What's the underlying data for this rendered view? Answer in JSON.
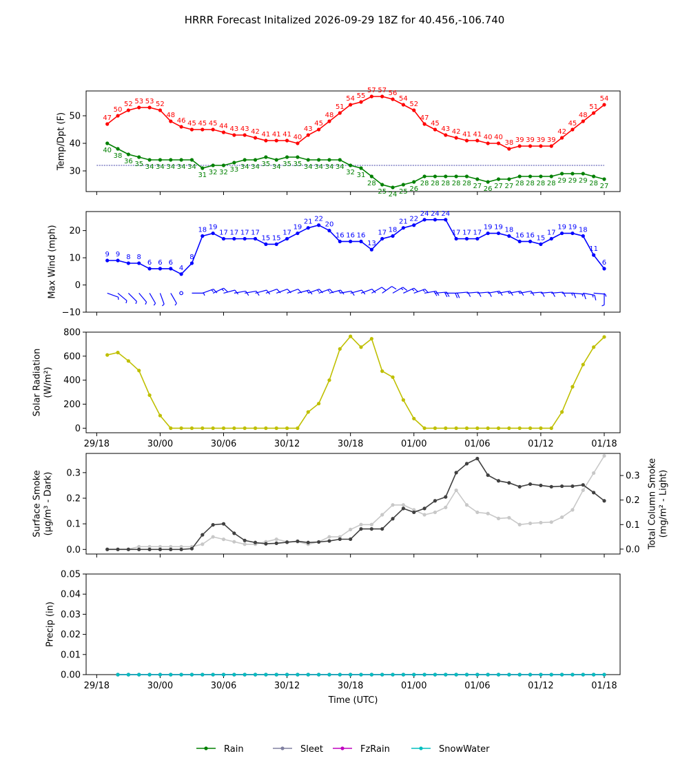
{
  "title": "HRRR Forecast Initalized 2026-09-29 18Z for 40.456,-106.740",
  "colors": {
    "temp": "#ff0000",
    "dew": "#008000",
    "wind": "#0000ff",
    "solar": "#bfbf00",
    "smoke_dark": "#404040",
    "smoke_light": "#c8c8c8",
    "rain": "#008000",
    "sleet": "#8080a0",
    "fzrain": "#bf00bf",
    "snow": "#00bfbf",
    "freezing_line": "#00008b"
  },
  "x_tick_labels": [
    "29/18",
    "30/00",
    "30/06",
    "30/12",
    "30/18",
    "01/00",
    "01/06",
    "01/12",
    "01/18"
  ],
  "xlabel": "Time (UTC)",
  "chart_data": [
    {
      "type": "line",
      "ylabel": "Temp/Dpt (F)",
      "ylim": [
        22.5,
        59
      ],
      "y_ticks": [
        "30",
        "40",
        "50"
      ],
      "x_hours": [
        1,
        2,
        3,
        4,
        5,
        6,
        7,
        8,
        9,
        10,
        11,
        12,
        13,
        14,
        15,
        16,
        17,
        18,
        19,
        20,
        21,
        22,
        23,
        24,
        25,
        26,
        27,
        28,
        29,
        30,
        31,
        32,
        33,
        34,
        35,
        36,
        37,
        38,
        39,
        40,
        41,
        42,
        43,
        44,
        45,
        46,
        47,
        48
      ],
      "freezing_line": 32,
      "series": [
        {
          "values": [
            47,
            50,
            52,
            53,
            53,
            52,
            48,
            46,
            45,
            45,
            45,
            44,
            43,
            43,
            42,
            41,
            41,
            41,
            40,
            43,
            45,
            48,
            51,
            54,
            55,
            57,
            57,
            56,
            54,
            52,
            47,
            45,
            43,
            42,
            41,
            41,
            40,
            40,
            38,
            39,
            39,
            39,
            39,
            42,
            45,
            48,
            51,
            54
          ],
          "labels": [
            "47",
            "50",
            "52",
            "53",
            "53",
            "52",
            "48",
            "46",
            "45",
            "45",
            "45",
            "44",
            "43",
            "43",
            "42",
            "41",
            "41",
            "41",
            "40",
            "43",
            "45",
            "48",
            "51",
            "54",
            "55",
            "57",
            "57",
            "56",
            "54",
            "52",
            "47",
            "45",
            "43",
            "42",
            "41",
            "41",
            "40",
            "40",
            "38",
            "39",
            "39",
            "39",
            "39",
            "42",
            "45",
            "48",
            "51",
            "54"
          ]
        },
        {
          "values": [
            40,
            38,
            36,
            35,
            34,
            34,
            34,
            34,
            34,
            31,
            32,
            32,
            33,
            34,
            34,
            35,
            34,
            35,
            35,
            34,
            34,
            34,
            34,
            32,
            31,
            28,
            25,
            24,
            25,
            26,
            28,
            28,
            28,
            28,
            28,
            27,
            26,
            27,
            27,
            28,
            28,
            28,
            28,
            29,
            29,
            29,
            28,
            27
          ],
          "labels": [
            "40",
            "38",
            "36",
            "35",
            "34",
            "34",
            "34",
            "34",
            "34",
            "31",
            "32",
            "32",
            "33",
            "34",
            "34",
            "35",
            "34",
            "35",
            "35",
            "34",
            "34",
            "34",
            "34",
            "32",
            "31",
            "28",
            "25",
            "24",
            "25",
            "26",
            "28",
            "28",
            "28",
            "28",
            "28",
            "27",
            "26",
            "27",
            "27",
            "28",
            "28",
            "28",
            "28",
            "29",
            "29",
            "29",
            "28",
            "27"
          ]
        }
      ]
    },
    {
      "type": "line",
      "ylabel": "Max Wind (mph)",
      "ylim": [
        -10,
        27
      ],
      "y_ticks": [
        "−10",
        "0",
        "10",
        "20"
      ],
      "x_hours": [
        1,
        2,
        3,
        4,
        5,
        6,
        7,
        8,
        9,
        10,
        11,
        12,
        13,
        14,
        15,
        16,
        17,
        18,
        19,
        20,
        21,
        22,
        23,
        24,
        25,
        26,
        27,
        28,
        29,
        30,
        31,
        32,
        33,
        34,
        35,
        36,
        37,
        38,
        39,
        40,
        41,
        42,
        43,
        44,
        45,
        46,
        47,
        48
      ],
      "values": [
        9,
        9,
        8,
        8,
        6,
        6,
        6,
        4,
        8,
        18,
        19,
        17,
        17,
        17,
        17,
        15,
        15,
        17,
        19,
        21,
        22,
        20,
        16,
        16,
        16,
        13,
        17,
        18,
        21,
        22,
        24,
        24,
        24,
        17,
        17,
        17,
        19,
        19,
        18,
        16,
        16,
        15,
        17,
        19,
        19,
        18,
        11,
        6
      ],
      "labels": [
        "9",
        "9",
        "8",
        "8",
        "6",
        "6",
        "6",
        "4",
        "8",
        "18",
        "19",
        "17",
        "17",
        "17",
        "17",
        "15",
        "15",
        "17",
        "19",
        "21",
        "22",
        "20",
        "16",
        "16",
        "16",
        "13",
        "17",
        "18",
        "21",
        "22",
        "24",
        "24",
        "24",
        "17",
        "17",
        "17",
        "19",
        "19",
        "18",
        "16",
        "16",
        "15",
        "17",
        "19",
        "19",
        "18",
        "11",
        "6"
      ],
      "wind_barbs_y": -3,
      "wind_dir_deg": [
        290,
        310,
        315,
        320,
        330,
        340,
        330,
        0,
        270,
        250,
        245,
        255,
        260,
        260,
        255,
        250,
        250,
        250,
        255,
        250,
        250,
        255,
        260,
        255,
        250,
        240,
        235,
        240,
        245,
        250,
        260,
        265,
        270,
        265,
        265,
        265,
        260,
        260,
        260,
        260,
        265,
        265,
        265,
        270,
        275,
        280,
        275,
        0
      ]
    },
    {
      "type": "line",
      "ylabel": "Solar Radiation (W/m²)",
      "ylim": [
        -38,
        800
      ],
      "y_ticks": [
        "0",
        "200",
        "400",
        "600",
        "800"
      ],
      "x_hours": [
        1,
        2,
        3,
        4,
        5,
        6,
        7,
        8,
        9,
        10,
        11,
        12,
        13,
        14,
        15,
        16,
        17,
        18,
        19,
        20,
        21,
        22,
        23,
        24,
        25,
        26,
        27,
        28,
        29,
        30,
        31,
        32,
        33,
        34,
        35,
        36,
        37,
        38,
        39,
        40,
        41,
        42,
        43,
        44,
        45,
        46,
        47,
        48
      ],
      "values": [
        610,
        630,
        560,
        480,
        275,
        105,
        0,
        0,
        0,
        0,
        0,
        0,
        0,
        0,
        0,
        0,
        0,
        0,
        0,
        135,
        205,
        400,
        660,
        765,
        675,
        745,
        475,
        425,
        235,
        80,
        0,
        0,
        0,
        0,
        0,
        0,
        0,
        0,
        0,
        0,
        0,
        0,
        0,
        135,
        345,
        530,
        675,
        760
      ]
    },
    {
      "type": "line",
      "ylabel": "Surface Smoke (µg/m³ - Dark)",
      "ylabel_right": "Total Column Smoke (mg/m² - Light)",
      "ylim": [
        -0.018,
        0.375
      ],
      "ylim_right": [
        -0.02,
        0.39
      ],
      "y_ticks": [
        "0.0",
        "0.1",
        "0.2",
        "0.3"
      ],
      "y_ticks_right": [
        "0.0",
        "0.1",
        "0.2",
        "0.3"
      ],
      "x_hours": [
        1,
        2,
        3,
        4,
        5,
        6,
        7,
        8,
        9,
        10,
        11,
        12,
        13,
        14,
        15,
        16,
        17,
        18,
        19,
        20,
        21,
        22,
        23,
        24,
        25,
        26,
        27,
        28,
        29,
        30,
        31,
        32,
        33,
        34,
        35,
        36,
        37,
        38,
        39,
        40,
        41,
        42,
        43,
        44,
        45,
        46,
        47,
        48
      ],
      "series": [
        {
          "values": [
            0.0,
            0.0,
            0.0,
            0.0,
            0.0,
            0.0,
            0.0,
            0.0,
            0.003,
            0.057,
            0.096,
            0.1,
            0.063,
            0.035,
            0.027,
            0.022,
            0.024,
            0.028,
            0.032,
            0.027,
            0.029,
            0.033,
            0.04,
            0.04,
            0.08,
            0.08,
            0.08,
            0.12,
            0.16,
            0.145,
            0.16,
            0.19,
            0.205,
            0.3,
            0.335,
            0.355,
            0.29,
            0.268,
            0.26,
            0.245,
            0.255,
            0.25,
            0.245,
            0.247,
            0.247,
            0.252,
            0.222,
            0.19
          ]
        },
        {
          "values": [
            0.0,
            0.0,
            0.0,
            0.01,
            0.01,
            0.01,
            0.01,
            0.01,
            0.01,
            0.02,
            0.05,
            0.04,
            0.03,
            0.02,
            0.02,
            0.03,
            0.04,
            0.03,
            0.03,
            0.02,
            0.03,
            0.05,
            0.05,
            0.08,
            0.1,
            0.1,
            0.14,
            0.18,
            0.18,
            0.16,
            0.14,
            0.15,
            0.17,
            0.24,
            0.18,
            0.15,
            0.145,
            0.125,
            0.128,
            0.1,
            0.105,
            0.108,
            0.11,
            0.13,
            0.16,
            0.24,
            0.31,
            0.38
          ]
        }
      ]
    },
    {
      "type": "line",
      "ylabel": "Precip (in)",
      "ylim": [
        0,
        0.05
      ],
      "y_ticks": [
        "0.00",
        "0.01",
        "0.02",
        "0.03",
        "0.04",
        "0.05"
      ],
      "x_hours": [
        2,
        3,
        4,
        5,
        6,
        7,
        8,
        9,
        10,
        11,
        12,
        13,
        14,
        15,
        16,
        17,
        18,
        19,
        20,
        21,
        22,
        23,
        24,
        25,
        26,
        27,
        28,
        29,
        30,
        31,
        32,
        33,
        34,
        35,
        36,
        37,
        38,
        39,
        40,
        41,
        42,
        43,
        44,
        45,
        46,
        47,
        48
      ],
      "series": [
        {
          "name": "Rain",
          "values": [
            0,
            0,
            0,
            0,
            0,
            0,
            0,
            0,
            0,
            0,
            0,
            0,
            0,
            0,
            0,
            0,
            0,
            0,
            0,
            0,
            0,
            0,
            0,
            0,
            0,
            0,
            0,
            0,
            0,
            0,
            0,
            0,
            0,
            0,
            0,
            0,
            0,
            0,
            0,
            0,
            0,
            0,
            0,
            0,
            0,
            0,
            0
          ]
        },
        {
          "name": "Sleet",
          "values": [
            0,
            0,
            0,
            0,
            0,
            0,
            0,
            0,
            0,
            0,
            0,
            0,
            0,
            0,
            0,
            0,
            0,
            0,
            0,
            0,
            0,
            0,
            0,
            0,
            0,
            0,
            0,
            0,
            0,
            0,
            0,
            0,
            0,
            0,
            0,
            0,
            0,
            0,
            0,
            0,
            0,
            0,
            0,
            0,
            0,
            0,
            0
          ]
        },
        {
          "name": "FzRain",
          "values": [
            0,
            0,
            0,
            0,
            0,
            0,
            0,
            0,
            0,
            0,
            0,
            0,
            0,
            0,
            0,
            0,
            0,
            0,
            0,
            0,
            0,
            0,
            0,
            0,
            0,
            0,
            0,
            0,
            0,
            0,
            0,
            0,
            0,
            0,
            0,
            0,
            0,
            0,
            0,
            0,
            0,
            0,
            0,
            0,
            0,
            0,
            0
          ]
        },
        {
          "name": "SnowWater",
          "values": [
            0,
            0,
            0,
            0,
            0,
            0,
            0,
            0,
            0,
            0,
            0,
            0,
            0,
            0,
            0,
            0,
            0,
            0,
            0,
            0,
            0,
            0,
            0,
            0,
            0,
            0,
            0,
            0,
            0,
            0,
            0,
            0,
            0,
            0,
            0,
            0,
            0,
            0,
            0,
            0,
            0,
            0,
            0,
            0,
            0,
            0,
            0
          ]
        }
      ]
    }
  ],
  "legend": {
    "placement": "bottom-center",
    "items": [
      "Rain",
      "Sleet",
      "FzRain",
      "SnowWater"
    ]
  }
}
